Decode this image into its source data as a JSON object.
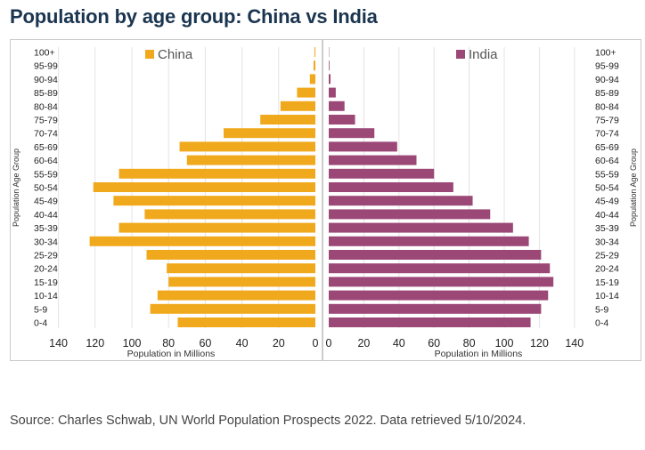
{
  "title": "Population by age group: China vs India",
  "source": "Source: Charles Schwab, UN World Population Prospects 2022. Data retrieved 5/10/2024.",
  "chart_data": [
    {
      "type": "bar",
      "orientation": "horizontal",
      "direction": "right-to-left",
      "series": [
        {
          "name": "China",
          "color": "#f0a91c",
          "values": [
            0.5,
            1,
            3,
            10,
            19,
            30,
            50,
            74,
            70,
            107,
            121,
            110,
            93,
            107,
            123,
            92,
            81,
            80,
            86,
            90,
            75
          ]
        }
      ],
      "categories": [
        "100+",
        "95-99",
        "90-94",
        "85-89",
        "80-84",
        "75-79",
        "70-74",
        "65-69",
        "60-64",
        "55-59",
        "50-54",
        "45-49",
        "40-44",
        "35-39",
        "30-34",
        "25-29",
        "20-24",
        "15-19",
        "10-14",
        "5-9",
        "0-4"
      ],
      "xlabel": "Population in Millions",
      "ylabel": "Population Age Group",
      "xlim": [
        0,
        140
      ],
      "xticks": [
        "140",
        "120",
        "100",
        "80",
        "60",
        "40",
        "20",
        "0"
      ],
      "legend": "top",
      "grid": true
    },
    {
      "type": "bar",
      "orientation": "horizontal",
      "direction": "left-to-right",
      "series": [
        {
          "name": "India",
          "color": "#9c4877",
          "values": [
            0.2,
            0.4,
            1,
            4,
            9,
            15,
            26,
            39,
            50,
            60,
            71,
            82,
            92,
            105,
            114,
            121,
            126,
            128,
            125,
            121,
            115
          ]
        }
      ],
      "categories": [
        "100+",
        "95-99",
        "90-94",
        "85-89",
        "80-84",
        "75-79",
        "70-74",
        "65-69",
        "60-64",
        "55-59",
        "50-54",
        "45-49",
        "40-44",
        "35-39",
        "30-34",
        "25-29",
        "20-24",
        "15-19",
        "10-14",
        "5-9",
        "0-4"
      ],
      "xlabel": "Population in Millions",
      "ylabel": "Population Age Group",
      "xlim": [
        0,
        140
      ],
      "xticks": [
        "0",
        "20",
        "40",
        "60",
        "80",
        "100",
        "120",
        "140"
      ],
      "legend": "top",
      "grid": true
    }
  ]
}
